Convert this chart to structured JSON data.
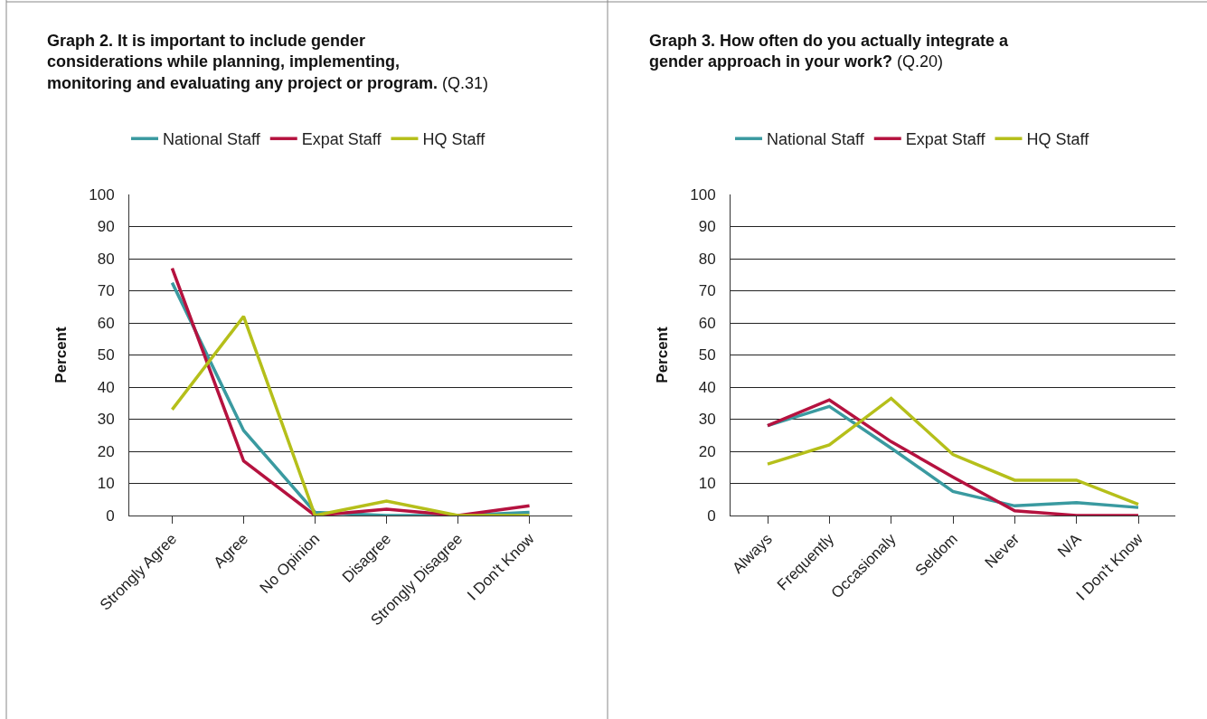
{
  "chart_data": [
    {
      "type": "line",
      "title": "Graph 2. It is important to include gender considerations while planning, implementing, monitoring and evaluating any project or program.",
      "subtitle": "(Q.31)",
      "ylabel": "Percent",
      "categories": [
        "Strongly Agree",
        "Agree",
        "No Opinion",
        "Disagree",
        "Strongly Disagree",
        "I Don't Know"
      ],
      "series": [
        {
          "name": "National Staff",
          "color": "#3a9aa0",
          "values": [
            72.5,
            26.5,
            1,
            0,
            0,
            1
          ]
        },
        {
          "name": "Expat Staff",
          "color": "#b5123f",
          "values": [
            77,
            17,
            0,
            2,
            0,
            3
          ]
        },
        {
          "name": "HQ Staff",
          "color": "#b5bf1a",
          "values": [
            33,
            62,
            0,
            4.5,
            0,
            0
          ]
        }
      ],
      "ylim": [
        0,
        100
      ],
      "yticks": [
        0,
        10,
        20,
        30,
        40,
        50,
        60,
        70,
        80,
        90,
        100
      ],
      "grid": "y",
      "legend": "top",
      "marker": "none",
      "line_style": "solid"
    },
    {
      "type": "line",
      "title": "Graph 3. How often do you actually integrate a gender approach in your work?",
      "subtitle": "(Q.20)",
      "ylabel": "Percent",
      "categories": [
        "Always",
        "Frequently",
        "Occasionaly",
        "Seldom",
        "Never",
        "N/A",
        "I Don't Know"
      ],
      "series": [
        {
          "name": "National Staff",
          "color": "#3a9aa0",
          "values": [
            28,
            34,
            21,
            7.5,
            3,
            4,
            2.5
          ]
        },
        {
          "name": "Expat Staff",
          "color": "#b5123f",
          "values": [
            28,
            36,
            23,
            12,
            1.5,
            0,
            0
          ]
        },
        {
          "name": "HQ Staff",
          "color": "#b5bf1a",
          "values": [
            16,
            22,
            36.5,
            19,
            11,
            11,
            3.5
          ]
        }
      ],
      "ylim": [
        0,
        100
      ],
      "yticks": [
        0,
        10,
        20,
        30,
        40,
        50,
        60,
        70,
        80,
        90,
        100
      ],
      "grid": "y",
      "legend": "top",
      "marker": "none",
      "line_style": "solid"
    }
  ]
}
